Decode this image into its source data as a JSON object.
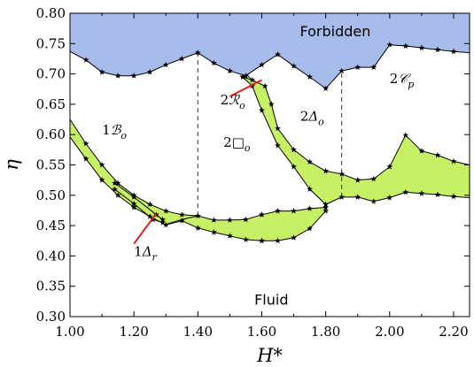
{
  "chart_data": {
    "type": "phase_diagram",
    "xlabel": "H*",
    "ylabel": "η",
    "xlim": [
      1.0,
      2.25
    ],
    "ylim": [
      0.3,
      0.8
    ],
    "xticks": [
      1.0,
      1.2,
      1.4,
      1.6,
      1.8,
      2.0,
      2.2
    ],
    "xtick_labels": [
      "1.00",
      "1.20",
      "1.40",
      "1.60",
      "1.80",
      "2.00",
      "2.20"
    ],
    "yticks": [
      0.3,
      0.35,
      0.4,
      0.45,
      0.5,
      0.55,
      0.6,
      0.65,
      0.7,
      0.75,
      0.8
    ],
    "ytick_labels": [
      "0.30",
      "0.35",
      "0.40",
      "0.45",
      "0.50",
      "0.55",
      "0.60",
      "0.65",
      "0.70",
      "0.75",
      "0.80"
    ],
    "colors": {
      "forbidden": "#a8bcec",
      "coexistence": "#c8f066",
      "annotation_arrow": "#e0201c",
      "line": "#000000"
    },
    "forbidden_boundary": [
      [
        1.0,
        0.737
      ],
      [
        1.05,
        0.723
      ],
      [
        1.1,
        0.703
      ],
      [
        1.15,
        0.697
      ],
      [
        1.2,
        0.697
      ],
      [
        1.25,
        0.703
      ],
      [
        1.3,
        0.715
      ],
      [
        1.35,
        0.725
      ],
      [
        1.4,
        0.735
      ],
      [
        1.45,
        0.718
      ],
      [
        1.5,
        0.705
      ],
      [
        1.55,
        0.697
      ],
      [
        1.6,
        0.715
      ],
      [
        1.65,
        0.732
      ],
      [
        1.7,
        0.713
      ],
      [
        1.75,
        0.695
      ],
      [
        1.8,
        0.676
      ],
      [
        1.85,
        0.705
      ],
      [
        1.9,
        0.711
      ],
      [
        1.95,
        0.711
      ],
      [
        2.0,
        0.748
      ],
      [
        2.05,
        0.746
      ],
      [
        2.1,
        0.743
      ],
      [
        2.15,
        0.74
      ],
      [
        2.2,
        0.737
      ],
      [
        2.25,
        0.735
      ]
    ],
    "coexistence_bands": [
      {
        "upper": [
          [
            1.0,
            0.625
          ],
          [
            1.05,
            0.585
          ],
          [
            1.1,
            0.55
          ],
          [
            1.15,
            0.52
          ],
          [
            1.2,
            0.5
          ],
          [
            1.25,
            0.485
          ],
          [
            1.3,
            0.474
          ],
          [
            1.35,
            0.468
          ],
          [
            1.4,
            0.466
          ],
          [
            1.45,
            0.459
          ],
          [
            1.5,
            0.459
          ],
          [
            1.55,
            0.46
          ],
          [
            1.6,
            0.468
          ]
        ],
        "lower": [
          [
            1.0,
            0.596
          ],
          [
            1.05,
            0.56
          ],
          [
            1.1,
            0.525
          ],
          [
            1.15,
            0.5
          ],
          [
            1.2,
            0.48
          ],
          [
            1.25,
            0.465
          ],
          [
            1.3,
            0.451
          ],
          [
            1.35,
            0.458
          ],
          [
            1.4,
            0.446
          ],
          [
            1.45,
            0.439
          ],
          [
            1.5,
            0.433
          ],
          [
            1.55,
            0.427
          ],
          [
            1.6,
            0.425
          ]
        ]
      },
      {
        "upper": [
          [
            1.6,
            0.468
          ],
          [
            1.65,
            0.474
          ],
          [
            1.7,
            0.474
          ],
          [
            1.75,
            0.478
          ],
          [
            1.8,
            0.48
          ]
        ],
        "lower": [
          [
            1.6,
            0.425
          ],
          [
            1.65,
            0.425
          ],
          [
            1.7,
            0.43
          ],
          [
            1.75,
            0.445
          ],
          [
            1.8,
            0.474
          ]
        ]
      },
      {
        "upper": [
          [
            1.54,
            0.695
          ],
          [
            1.57,
            0.69
          ],
          [
            1.61,
            0.68
          ],
          [
            1.63,
            0.65
          ],
          [
            1.65,
            0.61
          ],
          [
            1.7,
            0.575
          ],
          [
            1.75,
            0.555
          ],
          [
            1.8,
            0.54
          ],
          [
            1.85,
            0.535
          ],
          [
            1.9,
            0.525
          ],
          [
            1.95,
            0.527
          ],
          [
            2.0,
            0.547
          ],
          [
            2.05,
            0.599
          ],
          [
            2.1,
            0.573
          ],
          [
            2.15,
            0.566
          ],
          [
            2.2,
            0.556
          ],
          [
            2.25,
            0.55
          ]
        ],
        "lower": [
          [
            1.54,
            0.695
          ],
          [
            1.57,
            0.68
          ],
          [
            1.6,
            0.64
          ],
          [
            1.65,
            0.582
          ],
          [
            1.7,
            0.547
          ],
          [
            1.75,
            0.51
          ],
          [
            1.8,
            0.485
          ],
          [
            1.85,
            0.497
          ],
          [
            1.9,
            0.497
          ],
          [
            1.95,
            0.49
          ],
          [
            2.0,
            0.496
          ],
          [
            2.05,
            0.505
          ],
          [
            2.1,
            0.503
          ],
          [
            2.15,
            0.501
          ],
          [
            2.2,
            0.498
          ],
          [
            2.25,
            0.496
          ]
        ]
      },
      {
        "upper": [
          [
            1.14,
            0.52
          ],
          [
            1.2,
            0.497
          ],
          [
            1.27,
            0.468
          ],
          [
            1.29,
            0.46
          ]
        ],
        "lower": [
          [
            1.14,
            0.51
          ],
          [
            1.2,
            0.486
          ],
          [
            1.26,
            0.46
          ],
          [
            1.29,
            0.455
          ]
        ]
      }
    ],
    "extra_lines": [
      [
        [
          1.3,
          0.452
        ],
        [
          1.35,
          0.46
        ],
        [
          1.4,
          0.466
        ]
      ],
      [
        [
          1.57,
          0.69
        ],
        [
          1.55,
          0.7
        ]
      ]
    ],
    "dashed_lines": [
      [
        [
          1.4,
          0.466
        ],
        [
          1.4,
          0.735
        ]
      ],
      [
        [
          1.85,
          0.497
        ],
        [
          1.85,
          0.705
        ]
      ]
    ],
    "region_labels": [
      {
        "text": "Forbidden",
        "x": 1.83,
        "y": 0.762,
        "kind": "plain"
      },
      {
        "text": "Fluid",
        "x": 1.63,
        "y": 0.32,
        "kind": "plain"
      }
    ],
    "phase_labels": [
      {
        "prefix": "1",
        "symbol": "ℬ",
        "subscript": "o",
        "x": 1.1,
        "y": 0.6
      },
      {
        "prefix": "2",
        "symbol": "□",
        "subscript": "o",
        "x": 1.48,
        "y": 0.58
      },
      {
        "prefix": "2",
        "symbol": "Δ",
        "subscript": "o",
        "x": 1.72,
        "y": 0.623
      },
      {
        "prefix": "2",
        "symbol": "𝒞",
        "subscript": "p",
        "x": 2.0,
        "y": 0.685
      },
      {
        "prefix": "2",
        "symbol": "ℛ",
        "subscript": "o",
        "x": 1.47,
        "y": 0.65
      },
      {
        "prefix": "1",
        "symbol": "Δ",
        "subscript": "r",
        "x": 1.2,
        "y": 0.4
      }
    ],
    "annotation_arrows": [
      {
        "from": [
          1.5,
          0.663
        ],
        "to": [
          1.6,
          0.69
        ]
      },
      {
        "from": [
          1.2,
          0.42
        ],
        "to": [
          1.27,
          0.47
        ]
      }
    ],
    "marker": "star"
  }
}
